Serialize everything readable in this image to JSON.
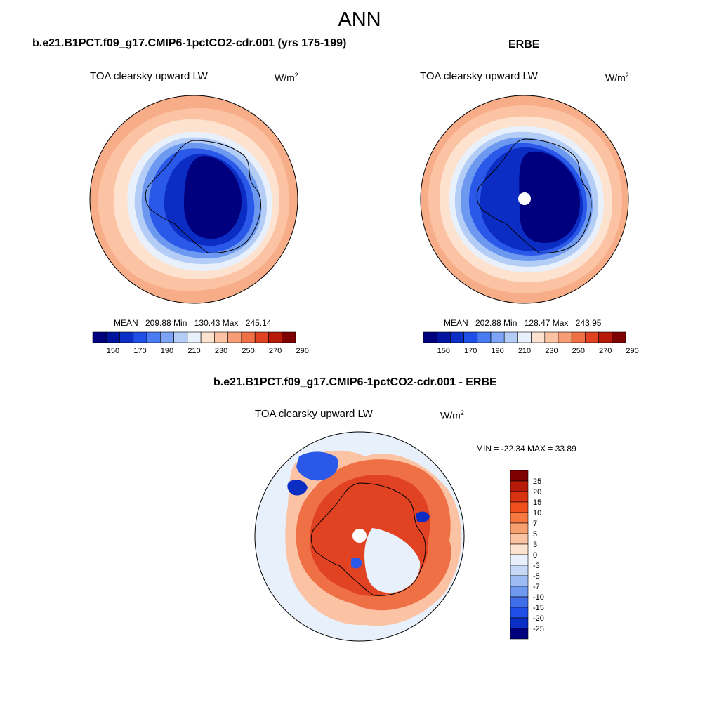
{
  "figure": {
    "title": "ANN"
  },
  "panels": {
    "model": {
      "case": "b.e21.B1PCT.f09_g17.CMIP6-1pctCO2-cdr.001 (yrs 175-199)",
      "variable": "TOA clearsky upward LW",
      "units_base": "W/m",
      "units_exp": "2",
      "stats": "MEAN= 209.88  Min= 130.43  Max= 245.14",
      "mean": 209.88,
      "min": 130.43,
      "max": 245.14
    },
    "obs": {
      "case": "ERBE",
      "variable": "TOA clearsky upward LW",
      "units_base": "W/m",
      "units_exp": "2",
      "stats": "MEAN= 202.88  Min= 128.47  Max= 243.95",
      "mean": 202.88,
      "min": 128.47,
      "max": 243.95
    },
    "diff": {
      "case": "b.e21.B1PCT.f09_g17.CMIP6-1pctCO2-cdr.001 - ERBE",
      "variable": "TOA clearsky upward LW",
      "units_base": "W/m",
      "units_exp": "2",
      "stats": "MIN = -22.34 MAX =  33.89",
      "min": -22.34,
      "max": 33.89
    }
  },
  "colorbars": {
    "absolute": {
      "tick_labels": [
        "150",
        "170",
        "190",
        "210",
        "230",
        "250",
        "270",
        "290"
      ],
      "colors": [
        "#00007f",
        "#0014a0",
        "#0a2ec6",
        "#1f4fe6",
        "#4a7bf2",
        "#7ca3f5",
        "#b3cdf7",
        "#e8f0fb",
        "#fde3cf",
        "#fbc3a3",
        "#f89c76",
        "#f07045",
        "#e04222",
        "#b81a0a",
        "#7f0000"
      ]
    },
    "difference": {
      "tick_labels": [
        "25",
        "20",
        "15",
        "10",
        "7",
        "5",
        "3",
        "0",
        "-3",
        "-5",
        "-7",
        "-10",
        "-15",
        "-20",
        "-25"
      ],
      "colors": [
        "#7f0000",
        "#b81a0a",
        "#d93412",
        "#f0501e",
        "#f7793f",
        "#f8a070",
        "#fbc3a3",
        "#fde3cf",
        "#e8f0fb",
        "#c5d9f7",
        "#9dbcf4",
        "#6f98f0",
        "#3f6ee8",
        "#1f4fe6",
        "#0a2ec6",
        "#00007f"
      ]
    }
  },
  "map_palette": {
    "deep": "#00007f",
    "dark": "#0c2dc4",
    "mid": "#2a58e8",
    "light": "#6d98f0",
    "pale": "#b3cdf7",
    "ice": "#e8f0fb",
    "cream": "#fde3cf",
    "peach": "#fbc3a3",
    "salmon": "#f6ad88",
    "orange": "#f07045",
    "red": "#e04222"
  }
}
